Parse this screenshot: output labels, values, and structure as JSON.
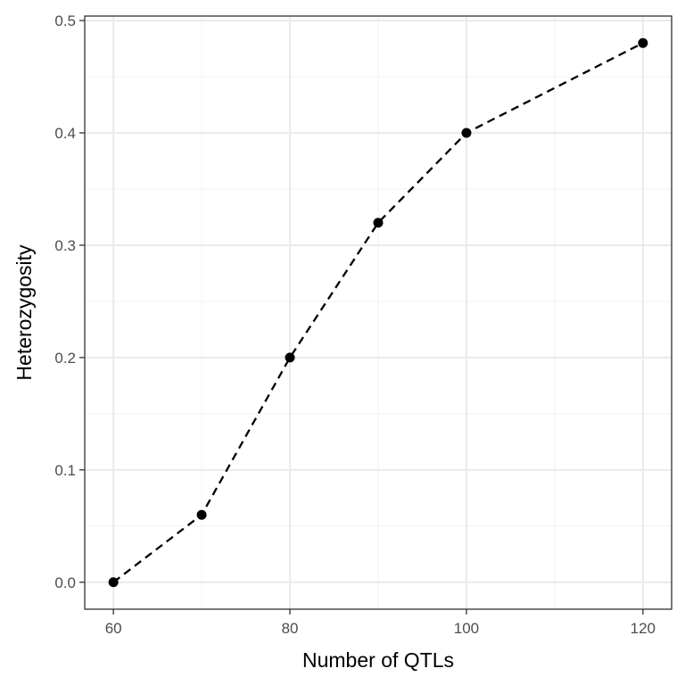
{
  "chart_data": {
    "type": "line",
    "title": "",
    "xlabel": "Number of QTLs",
    "ylabel": "Heterozygosity",
    "xlim": [
      56.75,
      123.25
    ],
    "ylim": [
      -0.024,
      0.504
    ],
    "x_ticks": [
      60,
      80,
      100,
      120
    ],
    "x_tick_labels": [
      "60",
      "80",
      "100",
      "120"
    ],
    "x_minor_ticks": [
      70,
      90,
      110
    ],
    "y_ticks": [
      0.0,
      0.1,
      0.2,
      0.3,
      0.4,
      0.5
    ],
    "y_tick_labels": [
      "0.0",
      "0.1",
      "0.2",
      "0.3",
      "0.4",
      "0.5"
    ],
    "y_minor_ticks": [
      0.05,
      0.15,
      0.25,
      0.35,
      0.45
    ],
    "grid": true,
    "legend": "none",
    "series": [
      {
        "line_style": "dashed",
        "color": "#000000",
        "points": [
          {
            "x": 60,
            "y": 0.0
          },
          {
            "x": 70,
            "y": 0.06
          },
          {
            "x": 80,
            "y": 0.2
          },
          {
            "x": 90,
            "y": 0.32
          },
          {
            "x": 100,
            "y": 0.4
          },
          {
            "x": 120,
            "y": 0.48
          }
        ]
      }
    ],
    "colors": {
      "background": "#ffffff",
      "grid_major": "#ebebeb",
      "grid_minor": "#f3f3f3",
      "panel_border": "#333333",
      "tick_text": "#4d4d4d",
      "tick_mark": "#333333",
      "series": "#000000"
    }
  }
}
